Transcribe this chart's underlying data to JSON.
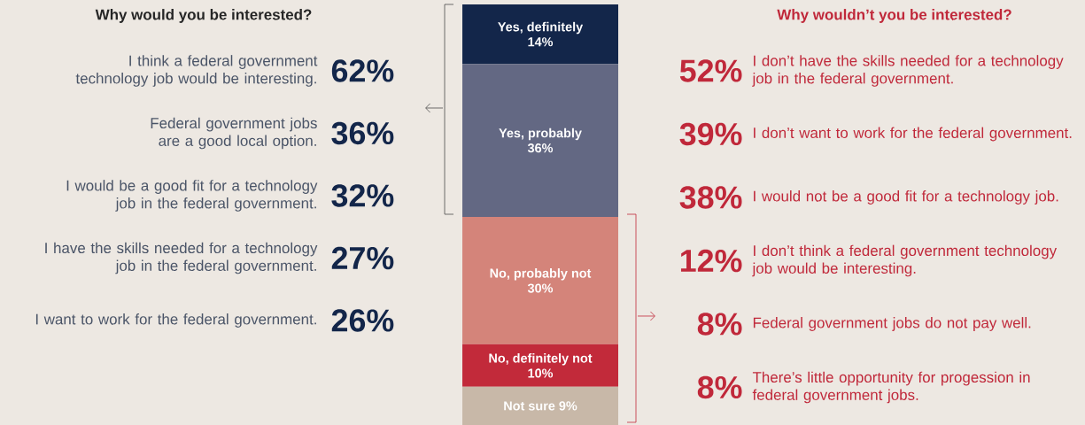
{
  "chart_data": [
    {
      "type": "other",
      "title": "Why would you be interested?",
      "color": "#13264a",
      "categories": [
        "I think a federal government technology job would be interesting.",
        "Federal government jobs are a good local option.",
        "I would be a good fit for a technology job in the federal government.",
        "I have the skills needed for a technology job in the federal government.",
        "I want to work for the federal government."
      ],
      "value_labels": [
        "62%",
        "36%",
        "32%",
        "27%",
        "26%"
      ]
    },
    {
      "type": "bar",
      "stacked": true,
      "categories": [
        null
      ],
      "series": [
        {
          "name": "Not sure",
          "color": "#c8b8a8",
          "values": [
            9
          ],
          "value_labels": [
            "9%"
          ]
        },
        {
          "name": "No, definitely not",
          "color": "#c22a3a",
          "values": [
            10
          ],
          "value_labels": [
            "10%"
          ]
        },
        {
          "name": "No, probably not",
          "color": "#d4847a",
          "values": [
            30
          ],
          "value_labels": [
            "30%"
          ]
        },
        {
          "name": "Yes, probably",
          "color": "#636883",
          "values": [
            36
          ],
          "value_labels": [
            "36%"
          ]
        },
        {
          "name": "Yes, definitely",
          "color": "#13264a",
          "values": [
            14
          ],
          "value_labels": [
            "14%"
          ]
        }
      ]
    },
    {
      "type": "other",
      "title": "Why wouldn’t you be interested?",
      "color": "#c0283a",
      "categories": [
        "I don’t have the skills needed for a technology job in the federal government.",
        "I don’t want to work for the federal government.",
        "I would not be a good fit for a technology job.",
        "I don’t think a federal government technology job would be interesting.",
        "Federal government jobs do not pay well.",
        "There’s little opportunity for progession in federal government jobs."
      ],
      "value_labels": [
        "52%",
        "39%",
        "38%",
        "12%",
        "8%",
        "8%"
      ]
    }
  ]
}
